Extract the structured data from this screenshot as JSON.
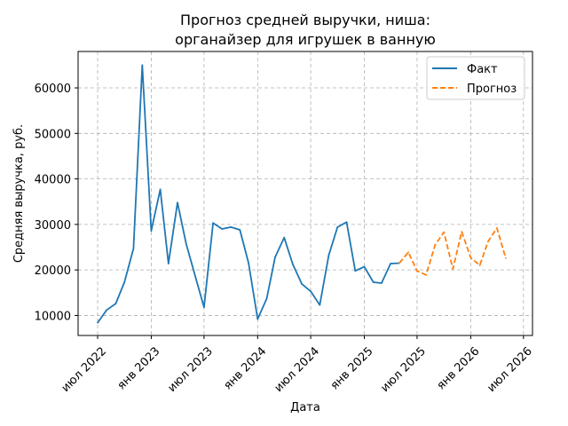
{
  "chart_data": {
    "type": "line",
    "title_lines": [
      "Прогноз средней выручки, ниша:",
      "органайзер для игрушек в ванную"
    ],
    "xlabel": "Дата",
    "ylabel": "Средняя выручка, руб.",
    "x_ticks": [
      {
        "label": "июл 2022",
        "date": "2022-07-01"
      },
      {
        "label": "янв 2023",
        "date": "2023-01-01"
      },
      {
        "label": "июл 2023",
        "date": "2023-07-01"
      },
      {
        "label": "янв 2024",
        "date": "2024-01-01"
      },
      {
        "label": "июл 2024",
        "date": "2024-07-01"
      },
      {
        "label": "янв 2025",
        "date": "2025-01-01"
      },
      {
        "label": "июл 2025",
        "date": "2025-07-01"
      },
      {
        "label": "янв 2026",
        "date": "2026-01-01"
      },
      {
        "label": "июл 2026",
        "date": "2026-07-01"
      }
    ],
    "y_ticks": [
      10000,
      20000,
      30000,
      40000,
      50000,
      60000
    ],
    "xlim": [
      "2022-04-25",
      "2026-08-01"
    ],
    "ylim": [
      5600,
      68000
    ],
    "grid": true,
    "legend_position": "top-right",
    "series": [
      {
        "name": "Факт",
        "color": "#1f77b4",
        "style": "solid",
        "points": [
          [
            "2022-07-01",
            8400
          ],
          [
            "2022-08-01",
            11200
          ],
          [
            "2022-09-01",
            12600
          ],
          [
            "2022-10-01",
            17300
          ],
          [
            "2022-11-01",
            24700
          ],
          [
            "2022-12-01",
            65000
          ],
          [
            "2023-01-01",
            28600
          ],
          [
            "2023-02-01",
            37700
          ],
          [
            "2023-03-01",
            21400
          ],
          [
            "2023-04-01",
            34800
          ],
          [
            "2023-05-01",
            25700
          ],
          [
            "2023-06-01",
            18600
          ],
          [
            "2023-07-01",
            11800
          ],
          [
            "2023-08-01",
            30300
          ],
          [
            "2023-09-01",
            29000
          ],
          [
            "2023-10-01",
            29400
          ],
          [
            "2023-11-01",
            28800
          ],
          [
            "2023-12-01",
            21500
          ],
          [
            "2024-01-01",
            9200
          ],
          [
            "2024-02-01",
            13700
          ],
          [
            "2024-03-01",
            22800
          ],
          [
            "2024-04-01",
            27100
          ],
          [
            "2024-05-01",
            21200
          ],
          [
            "2024-06-01",
            16900
          ],
          [
            "2024-07-01",
            15300
          ],
          [
            "2024-08-01",
            12300
          ],
          [
            "2024-09-01",
            23200
          ],
          [
            "2024-10-01",
            29400
          ],
          [
            "2024-11-01",
            30500
          ],
          [
            "2024-12-01",
            19800
          ],
          [
            "2025-01-01",
            20700
          ],
          [
            "2025-02-01",
            17300
          ],
          [
            "2025-03-01",
            17100
          ],
          [
            "2025-04-01",
            21400
          ],
          [
            "2025-05-01",
            21500
          ]
        ]
      },
      {
        "name": "Прогноз",
        "color": "#ff7f0e",
        "style": "dashed",
        "points": [
          [
            "2025-05-01",
            21500
          ],
          [
            "2025-06-01",
            23900
          ],
          [
            "2025-07-01",
            19800
          ],
          [
            "2025-08-01",
            18900
          ],
          [
            "2025-09-01",
            25500
          ],
          [
            "2025-10-01",
            28300
          ],
          [
            "2025-11-01",
            20200
          ],
          [
            "2025-12-01",
            28400
          ],
          [
            "2026-01-01",
            22700
          ],
          [
            "2026-02-01",
            21000
          ],
          [
            "2026-03-01",
            26200
          ],
          [
            "2026-04-01",
            29200
          ],
          [
            "2026-05-01",
            22600
          ]
        ]
      }
    ]
  }
}
